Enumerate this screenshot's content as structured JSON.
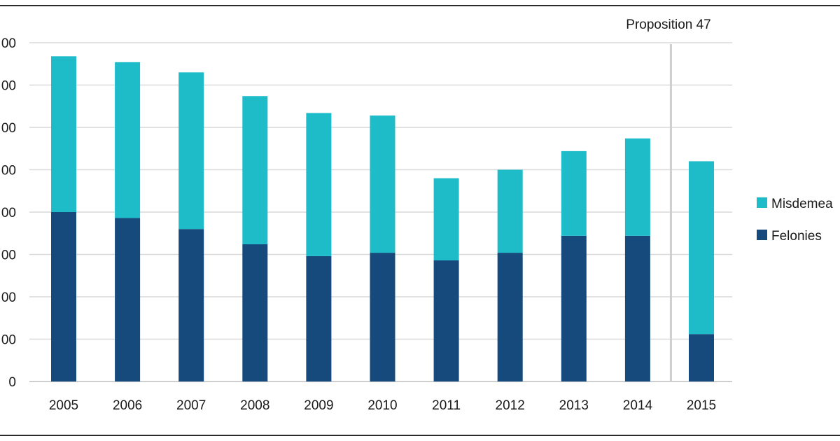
{
  "chart_data": {
    "type": "bar",
    "stacked": true,
    "categories": [
      "2005",
      "2006",
      "2007",
      "2008",
      "2009",
      "2010",
      "2011",
      "2012",
      "2013",
      "2014",
      "2015"
    ],
    "series": [
      {
        "name": "Felonies",
        "color": "#174a7c",
        "values": [
          200,
          193,
          180,
          162,
          148,
          152,
          143,
          152,
          172,
          172,
          56
        ]
      },
      {
        "name": "Misdemeanors",
        "color": "#1ebcc9",
        "values": [
          184,
          184,
          185,
          175,
          169,
          162,
          97,
          98,
          100,
          115,
          204
        ]
      }
    ],
    "y_tick_labels": [
      "0",
      "00",
      "00",
      "00",
      "00",
      "00",
      "00",
      "00",
      "00"
    ],
    "ylim": [
      0,
      400
    ],
    "grid": true,
    "legend_position": "right",
    "legend_labels": [
      "Misdemea",
      "Felonies"
    ],
    "annotation": {
      "label": "Proposition 47",
      "between": [
        "2014",
        "2015"
      ]
    }
  }
}
